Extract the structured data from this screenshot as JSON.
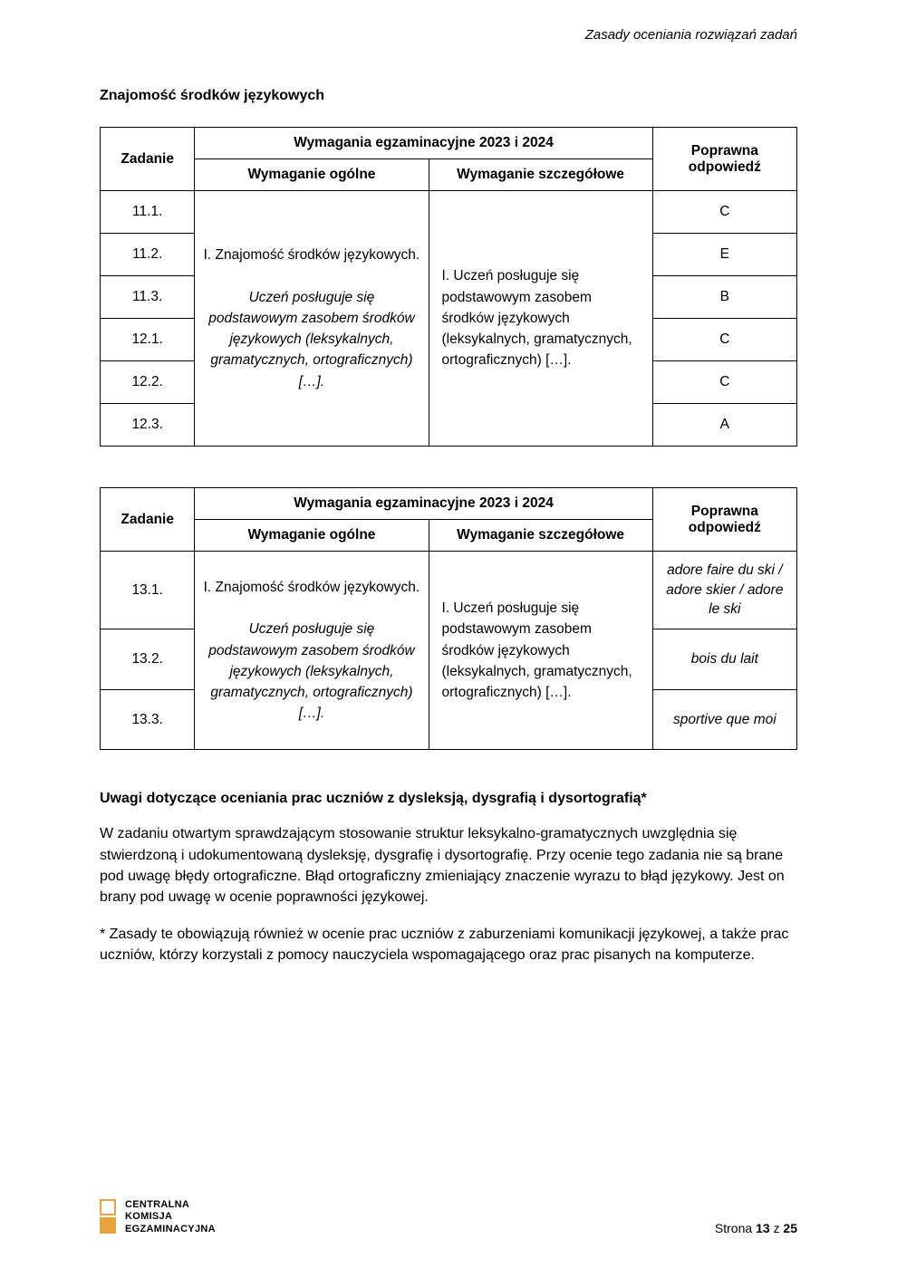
{
  "header": {
    "right": "Zasady oceniania rozwiązań zadań"
  },
  "section_title": "Znajomość środków językowych",
  "table1": {
    "headers": {
      "zadanie": "Zadanie",
      "wymagania_title": "Wymagania egzaminacyjne 2023 i 2024",
      "ogolne": "Wymaganie ogólne",
      "szczeg": "Wymaganie szczegółowe",
      "odp": "Poprawna odpowiedź"
    },
    "ogolne_line1": "I. Znajomość środków językowych.",
    "ogolne_line2": "Uczeń posługuje się podstawowym zasobem środków językowych (leksykalnych, gramatycznych, ortograficznych) […].",
    "szczeg_text": "I. Uczeń posługuje się podstawowym zasobem środków językowych (leksykalnych, gramatycznych, ortograficznych) […].",
    "rows": [
      {
        "z": "11.1.",
        "a": "C"
      },
      {
        "z": "11.2.",
        "a": "E"
      },
      {
        "z": "11.3.",
        "a": "B"
      },
      {
        "z": "12.1.",
        "a": "C"
      },
      {
        "z": "12.2.",
        "a": "C"
      },
      {
        "z": "12.3.",
        "a": "A"
      }
    ]
  },
  "table2": {
    "headers": {
      "zadanie": "Zadanie",
      "wymagania_title": "Wymagania egzaminacyjne 2023 i 2024",
      "ogolne": "Wymaganie ogólne",
      "szczeg": "Wymaganie szczegółowe",
      "odp": "Poprawna odpowiedź"
    },
    "ogolne_line1": "I. Znajomość środków językowych.",
    "ogolne_line2": "Uczeń posługuje się podstawowym zasobem środków językowych (leksykalnych, gramatycznych, ortograficznych) […].",
    "szczeg_text": "I. Uczeń posługuje się podstawowym zasobem środków językowych (leksykalnych, gramatycznych, ortograficznych) […].",
    "rows": [
      {
        "z": "13.1.",
        "a": "adore faire du ski / adore skier / adore le ski"
      },
      {
        "z": "13.2.",
        "a": "bois du lait"
      },
      {
        "z": "13.3.",
        "a": "sportive que moi"
      }
    ]
  },
  "notes": {
    "title": "Uwagi dotyczące oceniania prac uczniów z dysleksją, dysgrafią i dysortografią*",
    "p1": "W zadaniu otwartym sprawdzającym stosowanie struktur leksykalno-gramatycznych uwzględnia się stwierdzoną i udokumentowaną dysleksję, dysgrafię i dysortografię. Przy ocenie tego zadania nie są brane pod uwagę błędy ortograficzne. Błąd ortograficzny zmieniający znaczenie wyrazu to błąd językowy. Jest on brany pod uwagę w ocenie poprawności językowej.",
    "p2": "* Zasady te obowiązują również w ocenie prac uczniów z zaburzeniami komunikacji językowej, a także prac uczniów, którzy korzystali z pomocy nauczyciela wspomagającego oraz prac pisanych na komputerze."
  },
  "footer": {
    "logo_line1": "CENTRALNA",
    "logo_line2": "KOMISJA",
    "logo_line3": "EGZAMINACYJNA",
    "page_prefix": "Strona ",
    "page_current": "13",
    "page_sep": " z ",
    "page_total": "25"
  }
}
